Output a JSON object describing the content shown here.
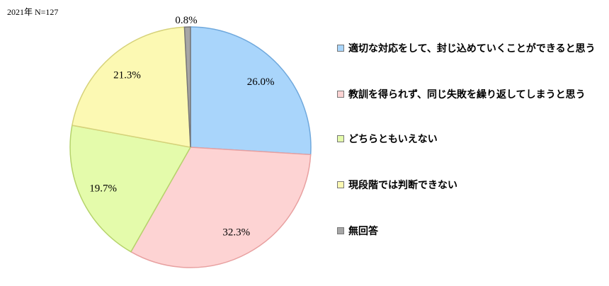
{
  "note": "2021年  N=127",
  "chart_data": {
    "type": "pie",
    "title": "",
    "start": "top",
    "direction": "clockwise",
    "slices": [
      {
        "label": "適切な対応をして、封じ込めていくことができると思う",
        "value": 26.0,
        "display": "26.0%",
        "color": "#a9d5fb"
      },
      {
        "label": "教訓を得られず、同じ失敗を繰り返してしまうと思う",
        "value": 32.3,
        "display": "32.3%",
        "color": "#fdd3d3"
      },
      {
        "label": "どちらともいえない",
        "value": 19.7,
        "display": "19.7%",
        "color": "#e4fbab"
      },
      {
        "label": "現段階では判断できない",
        "value": 21.3,
        "display": "21.3%",
        "color": "#fcf9b3"
      },
      {
        "label": "無回答",
        "value": 0.8,
        "display": "0.8%",
        "color": "#a6a6a6"
      }
    ],
    "legend_position": "right"
  }
}
